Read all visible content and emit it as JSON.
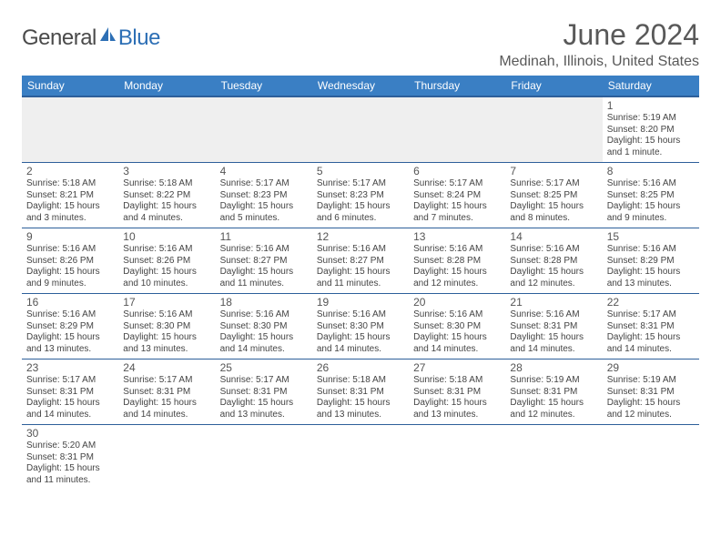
{
  "brand": {
    "part1": "General",
    "part2": "Blue"
  },
  "title": "June 2024",
  "location": "Medinah, Illinois, United States",
  "colors": {
    "header_bg": "#3a7fc4",
    "header_border": "#2d5f9a",
    "brand_blue": "#2d6fb5",
    "text_gray": "#595959",
    "cell_text": "#444444",
    "first_row_bg": "#efefef"
  },
  "days_of_week": [
    "Sunday",
    "Monday",
    "Tuesday",
    "Wednesday",
    "Thursday",
    "Friday",
    "Saturday"
  ],
  "weeks": [
    [
      null,
      null,
      null,
      null,
      null,
      null,
      {
        "n": "1",
        "sr": "Sunrise: 5:19 AM",
        "ss": "Sunset: 8:20 PM",
        "d1": "Daylight: 15 hours",
        "d2": "and 1 minute."
      }
    ],
    [
      {
        "n": "2",
        "sr": "Sunrise: 5:18 AM",
        "ss": "Sunset: 8:21 PM",
        "d1": "Daylight: 15 hours",
        "d2": "and 3 minutes."
      },
      {
        "n": "3",
        "sr": "Sunrise: 5:18 AM",
        "ss": "Sunset: 8:22 PM",
        "d1": "Daylight: 15 hours",
        "d2": "and 4 minutes."
      },
      {
        "n": "4",
        "sr": "Sunrise: 5:17 AM",
        "ss": "Sunset: 8:23 PM",
        "d1": "Daylight: 15 hours",
        "d2": "and 5 minutes."
      },
      {
        "n": "5",
        "sr": "Sunrise: 5:17 AM",
        "ss": "Sunset: 8:23 PM",
        "d1": "Daylight: 15 hours",
        "d2": "and 6 minutes."
      },
      {
        "n": "6",
        "sr": "Sunrise: 5:17 AM",
        "ss": "Sunset: 8:24 PM",
        "d1": "Daylight: 15 hours",
        "d2": "and 7 minutes."
      },
      {
        "n": "7",
        "sr": "Sunrise: 5:17 AM",
        "ss": "Sunset: 8:25 PM",
        "d1": "Daylight: 15 hours",
        "d2": "and 8 minutes."
      },
      {
        "n": "8",
        "sr": "Sunrise: 5:16 AM",
        "ss": "Sunset: 8:25 PM",
        "d1": "Daylight: 15 hours",
        "d2": "and 9 minutes."
      }
    ],
    [
      {
        "n": "9",
        "sr": "Sunrise: 5:16 AM",
        "ss": "Sunset: 8:26 PM",
        "d1": "Daylight: 15 hours",
        "d2": "and 9 minutes."
      },
      {
        "n": "10",
        "sr": "Sunrise: 5:16 AM",
        "ss": "Sunset: 8:26 PM",
        "d1": "Daylight: 15 hours",
        "d2": "and 10 minutes."
      },
      {
        "n": "11",
        "sr": "Sunrise: 5:16 AM",
        "ss": "Sunset: 8:27 PM",
        "d1": "Daylight: 15 hours",
        "d2": "and 11 minutes."
      },
      {
        "n": "12",
        "sr": "Sunrise: 5:16 AM",
        "ss": "Sunset: 8:27 PM",
        "d1": "Daylight: 15 hours",
        "d2": "and 11 minutes."
      },
      {
        "n": "13",
        "sr": "Sunrise: 5:16 AM",
        "ss": "Sunset: 8:28 PM",
        "d1": "Daylight: 15 hours",
        "d2": "and 12 minutes."
      },
      {
        "n": "14",
        "sr": "Sunrise: 5:16 AM",
        "ss": "Sunset: 8:28 PM",
        "d1": "Daylight: 15 hours",
        "d2": "and 12 minutes."
      },
      {
        "n": "15",
        "sr": "Sunrise: 5:16 AM",
        "ss": "Sunset: 8:29 PM",
        "d1": "Daylight: 15 hours",
        "d2": "and 13 minutes."
      }
    ],
    [
      {
        "n": "16",
        "sr": "Sunrise: 5:16 AM",
        "ss": "Sunset: 8:29 PM",
        "d1": "Daylight: 15 hours",
        "d2": "and 13 minutes."
      },
      {
        "n": "17",
        "sr": "Sunrise: 5:16 AM",
        "ss": "Sunset: 8:30 PM",
        "d1": "Daylight: 15 hours",
        "d2": "and 13 minutes."
      },
      {
        "n": "18",
        "sr": "Sunrise: 5:16 AM",
        "ss": "Sunset: 8:30 PM",
        "d1": "Daylight: 15 hours",
        "d2": "and 14 minutes."
      },
      {
        "n": "19",
        "sr": "Sunrise: 5:16 AM",
        "ss": "Sunset: 8:30 PM",
        "d1": "Daylight: 15 hours",
        "d2": "and 14 minutes."
      },
      {
        "n": "20",
        "sr": "Sunrise: 5:16 AM",
        "ss": "Sunset: 8:30 PM",
        "d1": "Daylight: 15 hours",
        "d2": "and 14 minutes."
      },
      {
        "n": "21",
        "sr": "Sunrise: 5:16 AM",
        "ss": "Sunset: 8:31 PM",
        "d1": "Daylight: 15 hours",
        "d2": "and 14 minutes."
      },
      {
        "n": "22",
        "sr": "Sunrise: 5:17 AM",
        "ss": "Sunset: 8:31 PM",
        "d1": "Daylight: 15 hours",
        "d2": "and 14 minutes."
      }
    ],
    [
      {
        "n": "23",
        "sr": "Sunrise: 5:17 AM",
        "ss": "Sunset: 8:31 PM",
        "d1": "Daylight: 15 hours",
        "d2": "and 14 minutes."
      },
      {
        "n": "24",
        "sr": "Sunrise: 5:17 AM",
        "ss": "Sunset: 8:31 PM",
        "d1": "Daylight: 15 hours",
        "d2": "and 14 minutes."
      },
      {
        "n": "25",
        "sr": "Sunrise: 5:17 AM",
        "ss": "Sunset: 8:31 PM",
        "d1": "Daylight: 15 hours",
        "d2": "and 13 minutes."
      },
      {
        "n": "26",
        "sr": "Sunrise: 5:18 AM",
        "ss": "Sunset: 8:31 PM",
        "d1": "Daylight: 15 hours",
        "d2": "and 13 minutes."
      },
      {
        "n": "27",
        "sr": "Sunrise: 5:18 AM",
        "ss": "Sunset: 8:31 PM",
        "d1": "Daylight: 15 hours",
        "d2": "and 13 minutes."
      },
      {
        "n": "28",
        "sr": "Sunrise: 5:19 AM",
        "ss": "Sunset: 8:31 PM",
        "d1": "Daylight: 15 hours",
        "d2": "and 12 minutes."
      },
      {
        "n": "29",
        "sr": "Sunrise: 5:19 AM",
        "ss": "Sunset: 8:31 PM",
        "d1": "Daylight: 15 hours",
        "d2": "and 12 minutes."
      }
    ],
    [
      {
        "n": "30",
        "sr": "Sunrise: 5:20 AM",
        "ss": "Sunset: 8:31 PM",
        "d1": "Daylight: 15 hours",
        "d2": "and 11 minutes."
      },
      null,
      null,
      null,
      null,
      null,
      null
    ]
  ]
}
